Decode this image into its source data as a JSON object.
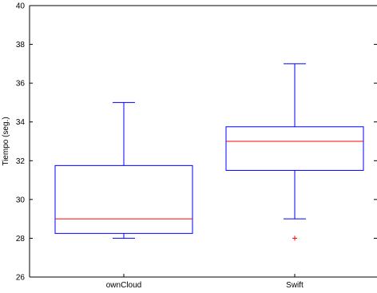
{
  "chart_data": {
    "type": "box",
    "title": "",
    "xlabel": "",
    "ylabel": "Tiempo (seg.)",
    "ylim": [
      26,
      40
    ],
    "yticks": [
      "26",
      "28",
      "30",
      "32",
      "34",
      "36",
      "38",
      "40"
    ],
    "grid": false,
    "categories": [
      "ownCloud",
      "Swift"
    ],
    "boxes": [
      {
        "name": "ownCloud",
        "whisker_low": 28,
        "q1": 28.25,
        "median": 29,
        "q3": 31.75,
        "whisker_high": 35,
        "outliers": []
      },
      {
        "name": "Swift",
        "whisker_low": 29,
        "q1": 31.5,
        "median": 33,
        "q3": 33.75,
        "whisker_high": 37,
        "outliers": [
          28
        ]
      }
    ],
    "colors": {
      "box": "#0000ff",
      "median": "#ff0000",
      "outlier": "#ff0000",
      "axis": "#000000"
    }
  }
}
